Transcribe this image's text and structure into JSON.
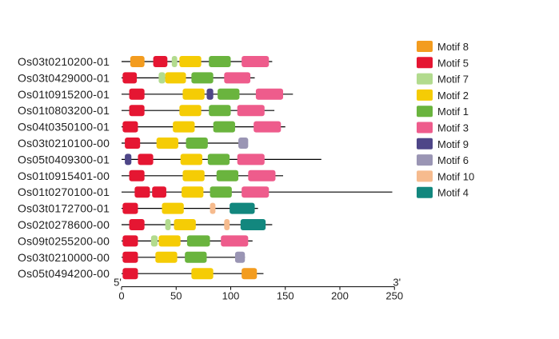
{
  "motif_colors": {
    "Motif 1": "#6ab43e",
    "Motif 2": "#f5cc05",
    "Motif 3": "#ee5c8c",
    "Motif 4": "#12877e",
    "Motif 5": "#e51632",
    "Motif 6": "#9a95b4",
    "Motif 7": "#b2db8e",
    "Motif 8": "#f39c1f",
    "Motif 9": "#4e4688",
    "Motif 10": "#f6bb8e"
  },
  "legend": [
    "Motif 8",
    "Motif 5",
    "Motif 7",
    "Motif 2",
    "Motif 1",
    "Motif 3",
    "Motif 9",
    "Motif 6",
    "Motif 10",
    "Motif 4"
  ],
  "axis": {
    "ticks": [
      0,
      50,
      100,
      150,
      200,
      250
    ],
    "tick_labels": [
      "0",
      "50",
      "100",
      "150",
      "200",
      "250"
    ],
    "range": [
      0,
      250
    ],
    "left_label": "5'",
    "right_label": "3'"
  },
  "genes": [
    {
      "name": "Os03t0210200-01",
      "length": 138,
      "motifs": [
        [
          "Motif 8",
          8,
          21
        ],
        [
          "Motif 5",
          29,
          42
        ],
        [
          "Motif 7",
          46,
          51
        ],
        [
          "Motif 2",
          53,
          73
        ],
        [
          "Motif 1",
          80,
          100
        ],
        [
          "Motif 3",
          110,
          135
        ]
      ]
    },
    {
      "name": "Os03t0429000-01",
      "length": 122,
      "motifs": [
        [
          "Motif 5",
          1,
          14
        ],
        [
          "Motif 7",
          34,
          40
        ],
        [
          "Motif 2",
          40,
          59
        ],
        [
          "Motif 1",
          64,
          84
        ],
        [
          "Motif 3",
          94,
          118
        ]
      ]
    },
    {
      "name": "Os01t0915200-01",
      "length": 157,
      "motifs": [
        [
          "Motif 5",
          7,
          21
        ],
        [
          "Motif 2",
          56,
          76
        ],
        [
          "Motif 9",
          78,
          84
        ],
        [
          "Motif 1",
          88,
          108
        ],
        [
          "Motif 3",
          123,
          148
        ]
      ]
    },
    {
      "name": "Os01t0803200-01",
      "length": 140,
      "motifs": [
        [
          "Motif 5",
          7,
          21
        ],
        [
          "Motif 2",
          53,
          73
        ],
        [
          "Motif 1",
          80,
          100
        ],
        [
          "Motif 3",
          106,
          131
        ]
      ]
    },
    {
      "name": "Os04t0350100-01",
      "length": 150,
      "motifs": [
        [
          "Motif 5",
          1,
          15
        ],
        [
          "Motif 2",
          47,
          67
        ],
        [
          "Motif 1",
          84,
          104
        ],
        [
          "Motif 3",
          121,
          146
        ]
      ]
    },
    {
      "name": "Os03t0210100-00",
      "length": 115,
      "motifs": [
        [
          "Motif 5",
          3,
          17
        ],
        [
          "Motif 2",
          32,
          52
        ],
        [
          "Motif 1",
          59,
          79
        ],
        [
          "Motif 6",
          107,
          116
        ]
      ]
    },
    {
      "name": "Os05t0409300-01",
      "length": 183,
      "motifs": [
        [
          "Motif 9",
          3,
          9
        ],
        [
          "Motif 5",
          15,
          29
        ],
        [
          "Motif 2",
          54,
          74
        ],
        [
          "Motif 1",
          79,
          99
        ],
        [
          "Motif 3",
          106,
          131
        ]
      ]
    },
    {
      "name": "Os01t0915401-00",
      "length": 148,
      "motifs": [
        [
          "Motif 5",
          7,
          21
        ],
        [
          "Motif 2",
          56,
          76
        ],
        [
          "Motif 1",
          87,
          107
        ],
        [
          "Motif 3",
          116,
          141
        ]
      ]
    },
    {
      "name": "Os01t0270100-01",
      "length": 248,
      "motifs": [
        [
          "Motif 5",
          12,
          26
        ],
        [
          "Motif 5",
          28,
          41
        ],
        [
          "Motif 2",
          55,
          75
        ],
        [
          "Motif 1",
          81,
          101
        ],
        [
          "Motif 3",
          110,
          135
        ]
      ]
    },
    {
      "name": "Os03t0172700-01",
      "length": 125,
      "motifs": [
        [
          "Motif 5",
          1,
          15
        ],
        [
          "Motif 2",
          37,
          57
        ],
        [
          "Motif 10",
          81,
          86
        ],
        [
          "Motif 4",
          99,
          122
        ]
      ]
    },
    {
      "name": "Os02t0278600-00",
      "length": 138,
      "motifs": [
        [
          "Motif 5",
          7,
          21
        ],
        [
          "Motif 7",
          40,
          45
        ],
        [
          "Motif 2",
          48,
          68
        ],
        [
          "Motif 10",
          94,
          99
        ],
        [
          "Motif 4",
          109,
          132
        ]
      ]
    },
    {
      "name": "Os09t0255200-00",
      "length": 120,
      "motifs": [
        [
          "Motif 5",
          1,
          15
        ],
        [
          "Motif 7",
          27,
          33
        ],
        [
          "Motif 2",
          34,
          54
        ],
        [
          "Motif 1",
          60,
          81
        ],
        [
          "Motif 3",
          91,
          116
        ]
      ]
    },
    {
      "name": "Os03t0210000-00",
      "length": 113,
      "motifs": [
        [
          "Motif 5",
          1,
          15
        ],
        [
          "Motif 2",
          31,
          51
        ],
        [
          "Motif 1",
          58,
          78
        ],
        [
          "Motif 6",
          104,
          113
        ]
      ]
    },
    {
      "name": "Os05t0494200-00",
      "length": 130,
      "motifs": [
        [
          "Motif 5",
          1,
          15
        ],
        [
          "Motif 2",
          64,
          84
        ],
        [
          "Motif 8",
          110,
          124
        ]
      ]
    }
  ]
}
